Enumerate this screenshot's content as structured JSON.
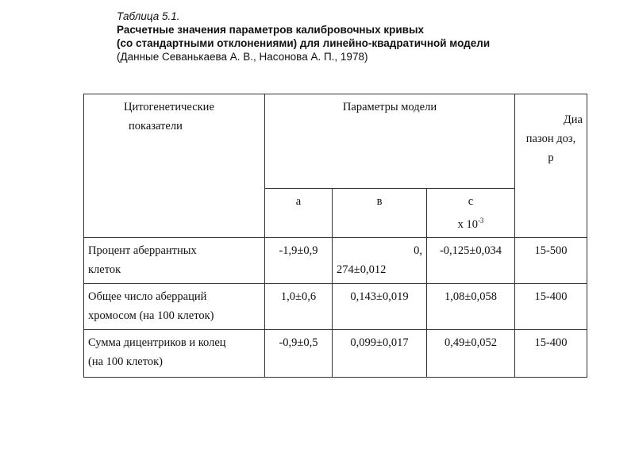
{
  "caption": {
    "label": "Таблица 5.1.",
    "title_line1": "Расчетные значения параметров калибровочных кривых",
    "title_line2": "(со стандартными отклонениями) для линейно-квадратичной модели",
    "source": "(Данные Севанькаева А. В., Насонова А. П., 1978)"
  },
  "table": {
    "header": {
      "indicators_line1": "Цитогенетические",
      "indicators_line2": "показатели",
      "params": "Параметры модели",
      "range_line1": "Диа",
      "range_line2": "пазон доз,",
      "range_line3": "р",
      "a": "а",
      "b": "в",
      "c": "с",
      "c_scale": "х 10",
      "c_exp": "-3"
    },
    "rows": [
      {
        "name_line1": "Процент аберрантных",
        "name_line2": "клеток",
        "a": "-1,9±0,9",
        "b_line1": "0,",
        "b_line2": "274±0,012",
        "c": "-0,125±0,034",
        "range": "15-500"
      },
      {
        "name_line1": "Общее число аберраций",
        "name_line2": "хромосом (на 100 клеток)",
        "a": "1,0±0,6",
        "b": "0,143±0,019",
        "c": "1,08±0,058",
        "range": "15-400"
      },
      {
        "name_line1": "Сумма дицентриков и колец",
        "name_line2": "(на 100 клеток)",
        "a": "-0,9±0,5",
        "b": "0,099±0,017",
        "c": "0,49±0,052",
        "range": "15-400"
      }
    ]
  }
}
